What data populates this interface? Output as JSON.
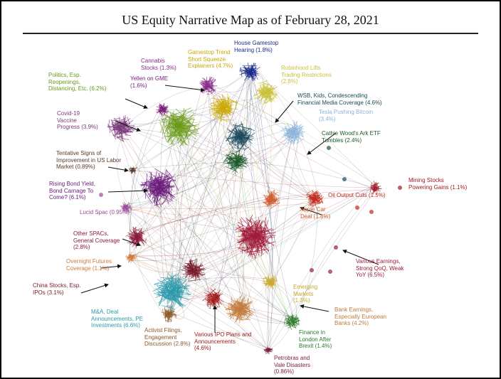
{
  "title": "US Equity Narrative Map as of February 28, 2021",
  "labels": [
    {
      "key": "house_gamestop",
      "lines": [
        "House Gamestop",
        "Hearing (1.8%)"
      ],
      "color": "#1a2a8a"
    },
    {
      "key": "gamestop_trend",
      "lines": [
        "Gamestop Trend",
        "Short Squeeze",
        "Explainers (4.7%)"
      ],
      "color": "#c9a800"
    },
    {
      "key": "cannabis",
      "lines": [
        "Cannabis",
        "Stocks (1.3%)"
      ],
      "color": "#8a2a8a"
    },
    {
      "key": "robinhood",
      "lines": [
        "Robinhood Lifts",
        "Trading Restrictions",
        "(2.8%)"
      ],
      "color": "#c9c23a"
    },
    {
      "key": "politics",
      "lines": [
        "Politics, Esp.",
        "Reopenings,",
        "Distancing, Etc. (6.2%)"
      ],
      "color": "#6a9a1a"
    },
    {
      "key": "yellen",
      "lines": [
        "Yellen on GME",
        "(1.6%)"
      ],
      "color": "#7a1a7a"
    },
    {
      "key": "wsb",
      "lines": [
        "WSB, Kids, Condescending",
        "Financial Media Coverage (4.6%)"
      ],
      "color": "#1a4a5a"
    },
    {
      "key": "tesla",
      "lines": [
        "Tesla Pushing Bitcoin",
        "(3.4%)"
      ],
      "color": "#8ab4d8"
    },
    {
      "key": "covid",
      "lines": [
        "Covid-19",
        "Vaccine",
        "Progress (3.9%)"
      ],
      "color": "#7a3a7a"
    },
    {
      "key": "cathie",
      "lines": [
        "Cathie Wood's Ark ETF",
        "Tumbles (2.4%)"
      ],
      "color": "#1a5a2a"
    },
    {
      "key": "labor",
      "lines": [
        "Tentative Signs of",
        "Improvement in US Labor",
        "Market (0.89%)"
      ],
      "color": "#5a3a2a"
    },
    {
      "key": "mining",
      "lines": [
        "Mining Stocks",
        "Powering Gains (1.1%)"
      ],
      "color": "#a01a2a"
    },
    {
      "key": "bond",
      "lines": [
        "Rising Bond Yield,",
        "Bond Carnage To",
        "Come? (6.1%)"
      ],
      "color": "#6a1a7a"
    },
    {
      "key": "oil",
      "lines": [
        "Oil Output Cuts (1.5%)"
      ],
      "color": "#c02a1a"
    },
    {
      "key": "lucid",
      "lines": [
        "Lucid Spac (0.95%)"
      ],
      "color": "#9a4a9a"
    },
    {
      "key": "apple",
      "lines": [
        "Apple Car",
        "Deal (1.8%)"
      ],
      "color": "#d05a2a"
    },
    {
      "key": "spacs",
      "lines": [
        "Other SPACs,",
        "General Coverage",
        "(2.8%)"
      ],
      "color": "#8a1a3a"
    },
    {
      "key": "overnight",
      "lines": [
        "Overnight Futures",
        "Coverage (1.1%)"
      ],
      "color": "#d07a3a"
    },
    {
      "key": "earnings",
      "lines": [
        "Various Earnings,",
        "Strong QoQ, Weak",
        "YoY (6.5%)"
      ],
      "color": "#a01a3a"
    },
    {
      "key": "china",
      "lines": [
        "China Stocks, Esp.",
        "IPOs (3.1%)"
      ],
      "color": "#7a1a2a"
    },
    {
      "key": "emerging",
      "lines": [
        "Emerging",
        "Markets",
        "(1.3%)"
      ],
      "color": "#c9a82a"
    },
    {
      "key": "bank",
      "lines": [
        "Bank Earnings,",
        "Especially European",
        "Banks (4.2%)"
      ],
      "color": "#c07a3a"
    },
    {
      "key": "ma",
      "lines": [
        "M&A, Deal",
        "Announcements, PE",
        "Investments (6.6%)"
      ],
      "color": "#2a9aaa"
    },
    {
      "key": "activist",
      "lines": [
        "Activist Filings,",
        "Engagement",
        "Discussion (2.8%)"
      ],
      "color": "#8a5a2a"
    },
    {
      "key": "ipo",
      "lines": [
        "Various IPO Plans and",
        "Announcements",
        "(4.6%)"
      ],
      "color": "#a01a1a"
    },
    {
      "key": "finance_london",
      "lines": [
        "Finance in",
        "London After",
        "Brexit (1.4%)"
      ],
      "color": "#2a7a2a"
    },
    {
      "key": "petrobras",
      "lines": [
        "Petrobras and",
        "Vale Disasters",
        "(0.86%)"
      ],
      "color": "#7a1a3a"
    }
  ]
}
